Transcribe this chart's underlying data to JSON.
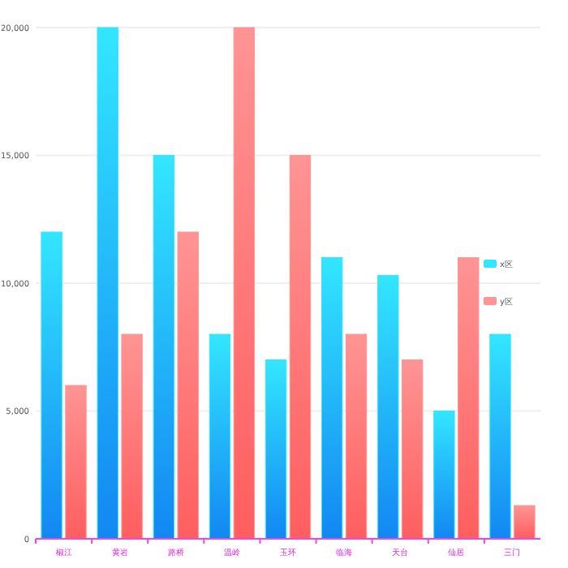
{
  "chart_data": {
    "type": "bar",
    "categories": [
      "椒江",
      "黄岩",
      "路桥",
      "温岭",
      "玉环",
      "临海",
      "天台",
      "仙居",
      "三门"
    ],
    "series": [
      {
        "name": "x区",
        "color": "#33e6ff",
        "values": [
          12000,
          20000,
          15000,
          8000,
          7000,
          11000,
          10300,
          5000,
          8000
        ]
      },
      {
        "name": "y区",
        "color": "#ff9494",
        "values": [
          6000,
          8000,
          12000,
          20000,
          15000,
          8000,
          7000,
          11000,
          1300
        ]
      }
    ],
    "ylim": [
      0,
      20000
    ],
    "yticks": [
      {
        "value": 0,
        "label": "0"
      },
      {
        "value": 5000,
        "label": "5,000"
      },
      {
        "value": 10000,
        "label": "10,000"
      },
      {
        "value": 15000,
        "label": "15,000"
      },
      {
        "value": 20000,
        "label": "20,000"
      }
    ],
    "grid": "y",
    "legend": "right"
  }
}
